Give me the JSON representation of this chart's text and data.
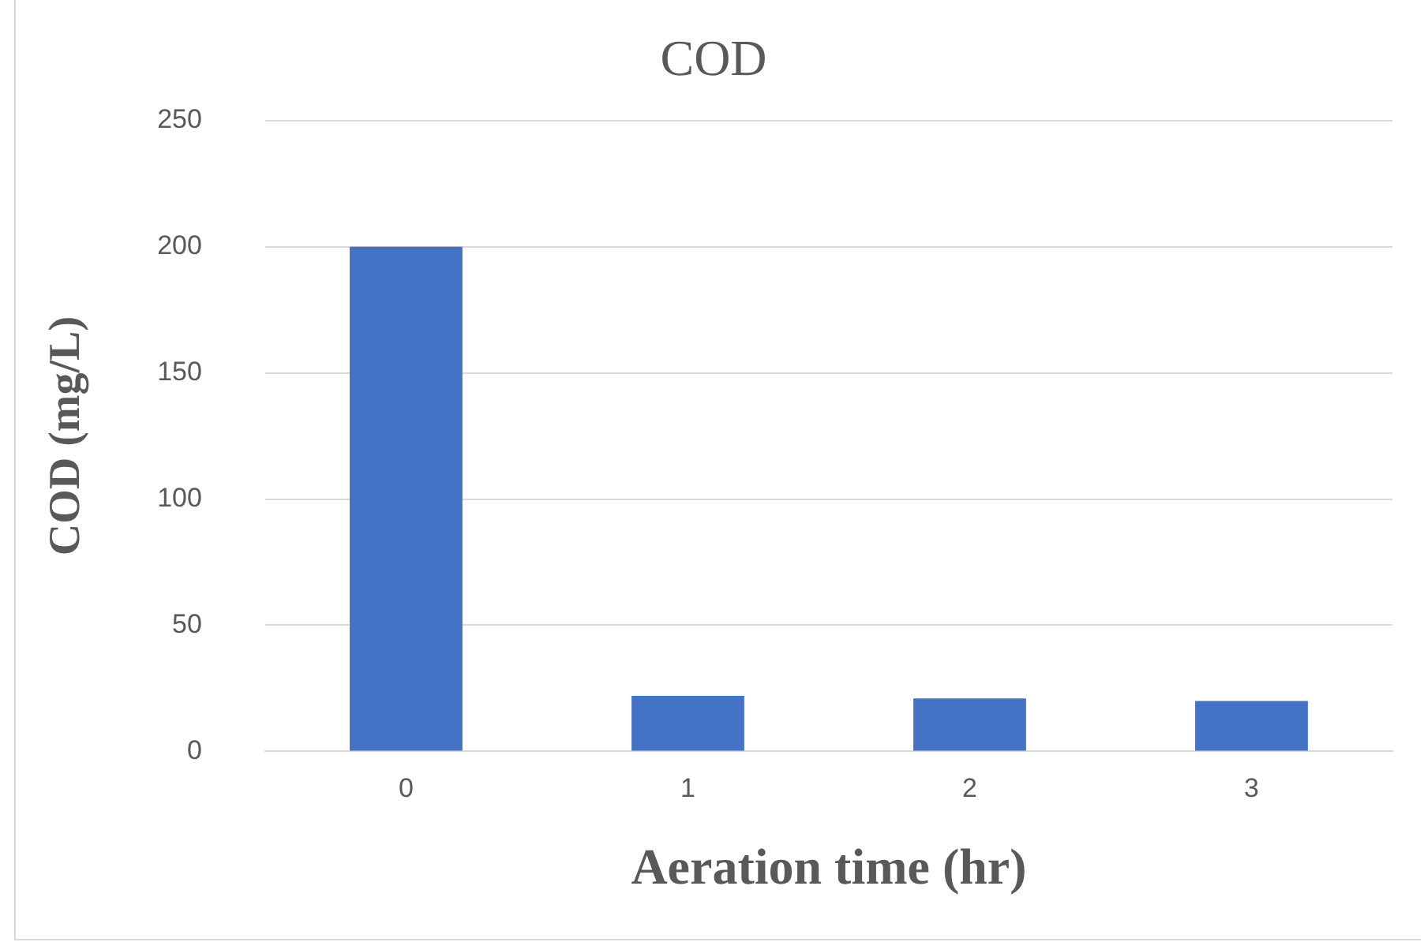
{
  "chart_data": {
    "type": "bar",
    "title": "COD",
    "xlabel": "Aeration time (hr)",
    "ylabel": "COD (mg/L)",
    "categories": [
      "0",
      "1",
      "2",
      "3"
    ],
    "values": [
      200,
      22,
      21,
      20
    ],
    "color": "#4472c4",
    "ylim": [
      0,
      250
    ],
    "yticks": [
      0,
      50,
      100,
      150,
      200,
      250
    ],
    "grid": "y",
    "legend": false
  }
}
